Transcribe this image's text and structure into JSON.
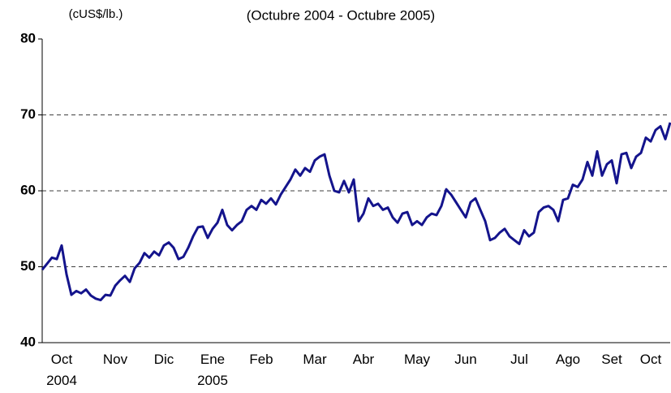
{
  "chart_data": {
    "type": "line",
    "title": "(Octubre 2004 - Octubre 2005)",
    "y_label": "(cUS$/lb.)",
    "categories": [
      null,
      null,
      null,
      null,
      "Oct\n2004",
      null,
      null,
      null,
      null,
      null,
      null,
      null,
      null,
      null,
      null,
      "Nov",
      null,
      null,
      null,
      null,
      null,
      null,
      null,
      null,
      null,
      "Dic",
      null,
      null,
      null,
      null,
      null,
      null,
      null,
      null,
      null,
      "Ene\n2005",
      null,
      null,
      null,
      null,
      null,
      null,
      null,
      null,
      null,
      "Feb",
      null,
      null,
      null,
      null,
      null,
      null,
      null,
      null,
      null,
      null,
      "Mar",
      null,
      null,
      null,
      null,
      null,
      null,
      null,
      null,
      null,
      "Abr",
      null,
      null,
      null,
      null,
      null,
      null,
      null,
      null,
      null,
      null,
      "May",
      null,
      null,
      null,
      null,
      null,
      null,
      null,
      null,
      null,
      "Jun",
      null,
      null,
      null,
      null,
      null,
      null,
      null,
      null,
      null,
      null,
      "Jul",
      null,
      null,
      null,
      null,
      null,
      null,
      null,
      null,
      null,
      "Ago",
      null,
      null,
      null,
      null,
      null,
      null,
      null,
      null,
      "Set",
      null,
      null,
      null,
      null,
      null,
      null,
      null,
      "Oct",
      null,
      null,
      null,
      null
    ],
    "series": [
      {
        "color": "#14148c",
        "values": [
          49.6,
          50.4,
          51.2,
          51.0,
          52.8,
          49.0,
          46.3,
          46.8,
          46.5,
          47.0,
          46.2,
          45.8,
          45.6,
          46.3,
          46.2,
          47.5,
          48.2,
          48.8,
          48.0,
          49.8,
          50.5,
          51.8,
          51.2,
          52.0,
          51.5,
          52.8,
          53.2,
          52.5,
          51.0,
          51.3,
          52.5,
          54.0,
          55.2,
          55.3,
          53.8,
          55.0,
          55.8,
          57.5,
          55.5,
          54.8,
          55.5,
          56.0,
          57.5,
          58.0,
          57.5,
          58.8,
          58.3,
          59.0,
          58.2,
          59.5,
          60.5,
          61.5,
          62.8,
          62.0,
          63.0,
          62.5,
          64.0,
          64.5,
          64.8,
          62.0,
          60.0,
          59.8,
          61.3,
          59.8,
          61.5,
          56.0,
          57.0,
          59.0,
          58.0,
          58.3,
          57.5,
          57.8,
          56.5,
          55.8,
          57.0,
          57.2,
          55.5,
          56.0,
          55.5,
          56.5,
          57.0,
          56.8,
          58.0,
          60.2,
          59.5,
          58.5,
          57.5,
          56.5,
          58.5,
          59.0,
          57.5,
          56.0,
          53.5,
          53.8,
          54.5,
          55.0,
          54.0,
          53.5,
          53.0,
          54.8,
          54.0,
          54.5,
          57.2,
          57.8,
          58.0,
          57.5,
          56.0,
          58.8,
          59.0,
          60.8,
          60.5,
          61.5,
          63.8,
          62.0,
          65.2,
          62.0,
          63.5,
          64.0,
          61.0,
          64.8,
          65.0,
          63.0,
          64.5,
          65.0,
          67.0,
          66.5,
          68.0,
          68.5,
          66.8,
          69.0
        ]
      }
    ],
    "ylim": [
      40,
      80
    ],
    "yticks": [
      40,
      50,
      60,
      70,
      80
    ],
    "grid": true
  }
}
